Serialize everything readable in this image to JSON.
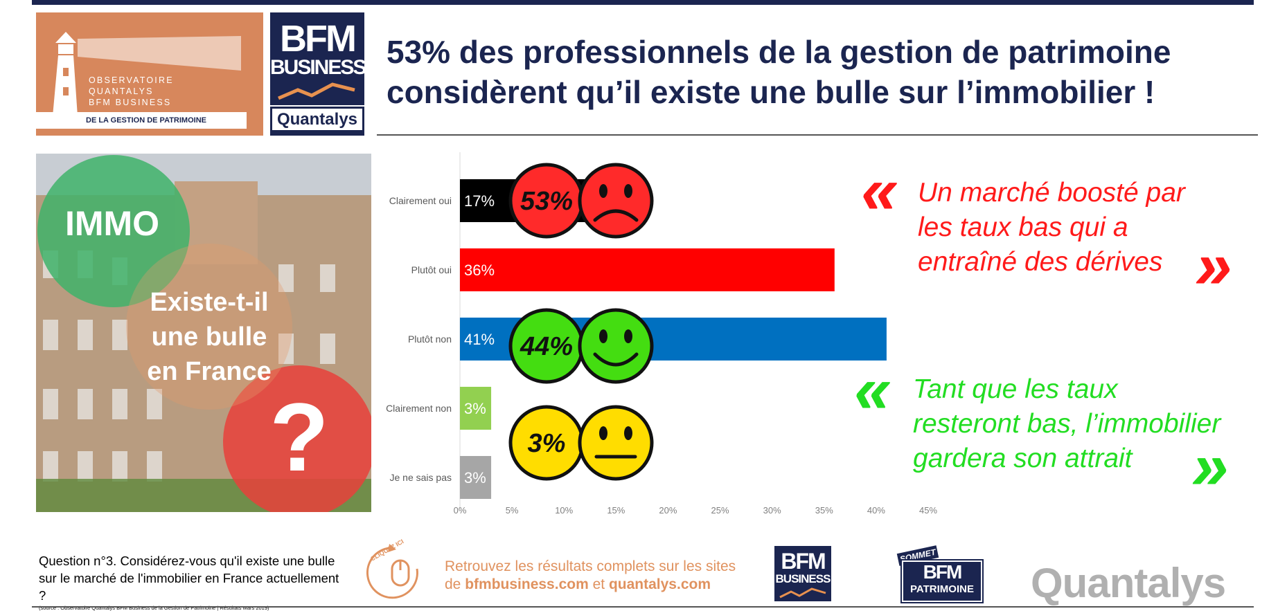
{
  "header": {
    "observatory_lines": [
      "OBSERVATOIRE",
      "QUANTALYS",
      "BFM BUSINESS"
    ],
    "observatory_band": "DE LA GESTION DE PATRIMOINE",
    "bfm_line1": "BFM",
    "bfm_line2": "BUSINESS",
    "quantalys_logo": "Quantalys",
    "title_line1": "53% des professionnels de la gestion de patrimoine",
    "title_line2": "considèrent qu’il existe une bulle sur l’immobilier !"
  },
  "photo_panel": {
    "badge": "IMMO",
    "line1": "Existe-t-il",
    "line2": "une bulle",
    "line3": "en France",
    "question_mark": "?"
  },
  "chart_data": {
    "type": "bar",
    "orientation": "horizontal",
    "categories": [
      "Clairement oui",
      "Plutôt oui",
      "Plutôt non",
      "Clairement non",
      "Je ne sais pas"
    ],
    "values": [
      17,
      36,
      41,
      3,
      3
    ],
    "value_labels": [
      "17%",
      "36%",
      "41%",
      "3%",
      "3%"
    ],
    "bar_colors": [
      "#000000",
      "#ff0000",
      "#0070c0",
      "#92d050",
      "#a6a6a6"
    ],
    "xlim": [
      0,
      45
    ],
    "xticks": [
      "0%",
      "5%",
      "10%",
      "15%",
      "20%",
      "25%",
      "30%",
      "35%",
      "40%",
      "45%"
    ],
    "grid": false,
    "annotations": [
      {
        "label": "53%",
        "color": "#ff2a2a",
        "face": "sad",
        "face_color": "#ff2a2a",
        "row": 0.5
      },
      {
        "label": "44%",
        "color": "#44dd11",
        "face": "happy",
        "face_color": "#44dd11",
        "row": 2.6
      },
      {
        "label": "3%",
        "color": "#ffdd00",
        "face": "neutral",
        "face_color": "#ffdd00",
        "row": 4.0
      }
    ]
  },
  "quotes": {
    "red": {
      "open": "«",
      "lines": [
        "Un marché boosté par",
        "les taux bas qui a",
        "entraîné des dérives"
      ],
      "close": "»",
      "color": "#ff1a1a"
    },
    "green": {
      "open": "«",
      "lines": [
        "Tant que les taux",
        "resteront bas, l’immobilier",
        "gardera son attrait"
      ],
      "close": "»",
      "color": "#22dd22"
    }
  },
  "footer": {
    "question": "Question n°3. Considérez-vous qu'il existe une bulle sur le marché de l'immobilier en France actuellement ?",
    "source": "(source : Observatoire Quantalys BFM Business de la Gestion de Patrimoine | Résultats Mars 2019)",
    "click_badge": "CLIQUEZ ICI",
    "promo_line1": "Retrouvez les résultats complets sur les sites",
    "promo_de": "de",
    "promo_site1": "bfmbusiness.com",
    "promo_et": "et",
    "promo_site2": "quantalys.com",
    "bfm_line1": "BFM",
    "bfm_line2": "BUSINESS",
    "sommet_top": "SOMMET",
    "sommet_mid": "BFM",
    "sommet_bottom": "PATRIMOINE",
    "quantalys": "Quantalys"
  }
}
